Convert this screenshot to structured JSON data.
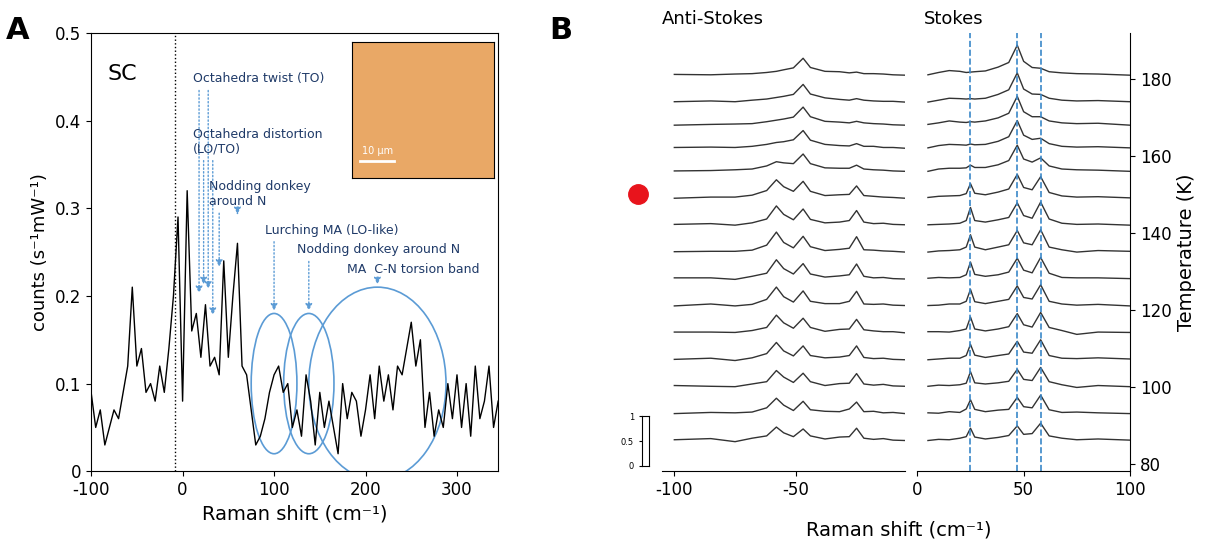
{
  "chart_data": [
    {
      "type": "line",
      "panel_label": "A",
      "sample_label": "SC",
      "xlabel": "Raman shift (cm⁻¹)",
      "ylabel": "counts (s⁻¹mW⁻¹)",
      "xlim": [
        -100,
        345
      ],
      "ylim": [
        0,
        0.5
      ],
      "xticks": [
        -100,
        0,
        100,
        200,
        300
      ],
      "yticks": [
        0,
        0.1,
        0.2,
        0.3,
        0.4,
        0.5
      ],
      "color": "#000000",
      "dotted_line_x": -8,
      "x": [
        -100,
        -95,
        -90,
        -85,
        -80,
        -75,
        -70,
        -65,
        -60,
        -55,
        -50,
        -45,
        -40,
        -35,
        -30,
        -25,
        -20,
        -15,
        -10,
        -5,
        0,
        5,
        10,
        15,
        20,
        25,
        30,
        35,
        40,
        45,
        50,
        55,
        60,
        65,
        70,
        75,
        80,
        85,
        90,
        95,
        100,
        105,
        110,
        115,
        120,
        125,
        130,
        135,
        140,
        145,
        150,
        155,
        160,
        165,
        170,
        175,
        180,
        185,
        190,
        195,
        200,
        205,
        210,
        215,
        220,
        225,
        230,
        235,
        240,
        245,
        250,
        255,
        260,
        265,
        270,
        275,
        280,
        285,
        290,
        295,
        300,
        305,
        310,
        315,
        320,
        325,
        330,
        335,
        340,
        345
      ],
      "values": [
        0.09,
        0.05,
        0.07,
        0.03,
        0.05,
        0.07,
        0.06,
        0.09,
        0.12,
        0.21,
        0.12,
        0.14,
        0.09,
        0.1,
        0.08,
        0.12,
        0.09,
        0.14,
        0.2,
        0.29,
        0.08,
        0.32,
        0.16,
        0.18,
        0.13,
        0.19,
        0.12,
        0.13,
        0.11,
        0.24,
        0.13,
        0.2,
        0.26,
        0.12,
        0.11,
        0.07,
        0.03,
        0.04,
        0.06,
        0.09,
        0.11,
        0.12,
        0.09,
        0.1,
        0.05,
        0.07,
        0.04,
        0.11,
        0.08,
        0.03,
        0.09,
        0.05,
        0.08,
        0.05,
        0.02,
        0.1,
        0.06,
        0.09,
        0.08,
        0.04,
        0.07,
        0.11,
        0.06,
        0.12,
        0.08,
        0.11,
        0.07,
        0.12,
        0.11,
        0.14,
        0.17,
        0.12,
        0.15,
        0.05,
        0.09,
        0.04,
        0.07,
        0.05,
        0.1,
        0.06,
        0.11,
        0.05,
        0.1,
        0.04,
        0.12,
        0.06,
        0.08,
        0.12,
        0.05,
        0.08
      ],
      "annotations": [
        {
          "text": "Octahedra twist (TO)",
          "targets": [
            [
              18,
              0.2
            ],
            [
              28,
              0.205
            ]
          ]
        },
        {
          "text": "Octahedra distortion\n(LO/TO)",
          "targets": [
            [
              23,
              0.21
            ],
            [
              33,
              0.175
            ]
          ]
        },
        {
          "text": "Nodding donkey\naround N",
          "targets": [
            [
              40,
              0.23
            ],
            [
              60,
              0.29
            ]
          ]
        },
        {
          "text": "Lurching MA (LO-like)",
          "ellipse": [
            100,
            0.1,
            50,
            0.16
          ]
        },
        {
          "text": "Nodding donkey around N",
          "ellipse": [
            138,
            0.1,
            55,
            0.16
          ]
        },
        {
          "text": "MA  C-N torsion band",
          "ellipse": [
            213,
            0.1,
            150,
            0.22
          ]
        }
      ],
      "inset": {
        "scale_bar": "10 μm"
      }
    },
    {
      "type": "line",
      "panel_label": "B",
      "xlabel": "Raman shift (cm⁻¹)",
      "ylabel": "Temperature (K)",
      "ylim": [
        78,
        192
      ],
      "yticks": [
        80,
        100,
        120,
        140,
        160,
        180
      ],
      "color": "#333333",
      "marker_temperature": 150,
      "marker_color": "#e8141c",
      "dashed_lines_x": [
        25,
        47,
        58
      ],
      "dashed_color": "#3a87c8",
      "scale_ylim": [
        0,
        1
      ],
      "scale_yticks": [
        0,
        0.5,
        1
      ],
      "panels": [
        {
          "title": "Anti-Stokes",
          "xlim": [
            -105,
            -5
          ],
          "xticks": [
            -100,
            -50
          ],
          "x": [
            -100,
            -85,
            -75,
            -68,
            -62,
            -58,
            -55,
            -51,
            -47,
            -44,
            -38,
            -32,
            -28,
            -25,
            -22,
            -18,
            -14,
            -10,
            -5
          ]
        },
        {
          "title": "Stokes",
          "xlim": [
            0,
            100
          ],
          "xticks": [
            0,
            50,
            100
          ],
          "x": [
            5,
            10,
            15,
            20,
            23,
            25,
            27,
            32,
            38,
            43,
            47,
            50,
            54,
            58,
            62,
            68,
            75,
            85,
            100
          ]
        }
      ],
      "traces": [
        {
          "temperature": 86,
          "anti_stokes": [
            0.2,
            0.5,
            -0.3,
            0.6,
            1.2,
            3.5,
            2.0,
            1.0,
            3.0,
            1.2,
            0.4,
            0.9,
            1.0,
            3.2,
            0.6,
            0.3,
            0.5,
            0.1,
            0.0
          ],
          "stokes": [
            0.0,
            0.3,
            0.2,
            0.6,
            1.0,
            3.2,
            0.9,
            0.4,
            0.8,
            1.3,
            3.8,
            1.6,
            1.8,
            4.5,
            1.2,
            0.6,
            0.2,
            0.4,
            0.1
          ]
        },
        {
          "temperature": 93,
          "anti_stokes": [
            0.0,
            0.3,
            0.2,
            0.4,
            1.5,
            4.0,
            2.2,
            0.8,
            3.2,
            1.0,
            0.6,
            0.5,
            1.2,
            3.0,
            0.5,
            0.6,
            0.2,
            0.3,
            0.0
          ],
          "stokes": [
            0.2,
            0.1,
            0.5,
            0.3,
            1.2,
            3.6,
            1.1,
            0.5,
            0.9,
            1.1,
            4.2,
            1.8,
            1.5,
            4.8,
            1.0,
            0.3,
            0.4,
            0.2,
            0.0
          ]
        },
        {
          "temperature": 100,
          "anti_stokes": [
            0.3,
            0.1,
            0.0,
            0.7,
            1.3,
            4.2,
            2.5,
            1.1,
            3.5,
            1.3,
            0.3,
            0.8,
            0.9,
            3.4,
            0.7,
            0.4,
            0.6,
            0.2,
            0.1
          ],
          "stokes": [
            0.1,
            0.4,
            0.3,
            0.5,
            0.9,
            3.9,
            1.0,
            0.7,
            1.0,
            1.4,
            4.5,
            1.9,
            1.6,
            5.0,
            1.3,
            0.5,
            -0.2,
            0.3,
            0.0
          ]
        },
        {
          "temperature": 107,
          "anti_stokes": [
            0.1,
            0.4,
            -0.2,
            0.5,
            1.6,
            4.5,
            2.3,
            1.0,
            3.6,
            1.1,
            0.5,
            0.7,
            1.1,
            3.6,
            0.6,
            0.3,
            0.4,
            0.1,
            0.0
          ],
          "stokes": [
            0.0,
            0.2,
            0.4,
            0.4,
            1.1,
            4.0,
            1.2,
            0.6,
            1.1,
            1.5,
            4.8,
            2.0,
            1.7,
            5.2,
            1.1,
            0.4,
            0.3,
            0.5,
            0.2
          ]
        },
        {
          "temperature": 114,
          "anti_stokes": [
            0.2,
            0.2,
            0.1,
            0.6,
            1.4,
            4.6,
            2.6,
            1.2,
            3.8,
            1.4,
            0.4,
            0.9,
            1.0,
            3.5,
            0.8,
            0.5,
            0.3,
            0.3,
            0.0
          ],
          "stokes": [
            0.3,
            0.3,
            0.2,
            0.6,
            1.0,
            4.1,
            1.0,
            0.5,
            1.0,
            1.6,
            5.0,
            2.1,
            1.5,
            5.3,
            1.4,
            0.6,
            -0.4,
            0.2,
            0.1
          ]
        },
        {
          "temperature": 121,
          "anti_stokes": [
            0.0,
            0.5,
            0.0,
            0.4,
            1.7,
            4.9,
            2.4,
            1.0,
            3.9,
            1.2,
            0.6,
            0.6,
            1.2,
            3.8,
            0.5,
            0.4,
            0.5,
            0.2,
            0.1
          ],
          "stokes": [
            0.1,
            0.2,
            0.5,
            0.5,
            1.2,
            4.3,
            1.1,
            0.6,
            1.2,
            1.7,
            5.2,
            2.2,
            1.8,
            5.5,
            1.2,
            0.5,
            0.2,
            0.4,
            0.0
          ]
        },
        {
          "temperature": 128,
          "anti_stokes": [
            0.3,
            0.3,
            -0.1,
            0.7,
            1.5,
            5.0,
            2.7,
            1.3,
            4.0,
            1.3,
            0.5,
            0.8,
            1.1,
            3.9,
            0.7,
            0.3,
            0.4,
            0.1,
            0.0
          ],
          "stokes": [
            0.2,
            0.4,
            0.3,
            0.4,
            1.1,
            4.4,
            1.2,
            0.7,
            1.1,
            1.8,
            5.4,
            2.3,
            1.6,
            5.6,
            1.5,
            0.4,
            0.3,
            0.3,
            0.1
          ]
        },
        {
          "temperature": 135,
          "anti_stokes": [
            0.1,
            0.2,
            0.2,
            0.5,
            1.8,
            5.2,
            2.5,
            1.1,
            4.1,
            1.4,
            0.4,
            0.7,
            1.0,
            4.0,
            0.6,
            0.5,
            0.3,
            0.2,
            0.0
          ],
          "stokes": [
            0.0,
            0.3,
            0.4,
            0.6,
            1.3,
            4.5,
            1.3,
            0.6,
            1.3,
            1.9,
            5.6,
            2.4,
            1.9,
            5.8,
            1.3,
            0.6,
            0.0,
            0.4,
            0.2
          ]
        },
        {
          "temperature": 142,
          "anti_stokes": [
            0.2,
            0.4,
            0.0,
            0.6,
            1.6,
            5.0,
            2.8,
            1.4,
            4.2,
            1.5,
            0.6,
            0.8,
            1.2,
            3.8,
            0.8,
            0.4,
            0.5,
            0.2,
            0.1
          ],
          "stokes": [
            0.1,
            0.2,
            0.3,
            0.5,
            1.2,
            4.6,
            1.2,
            0.8,
            1.4,
            2.0,
            5.8,
            2.5,
            1.8,
            6.0,
            1.6,
            0.5,
            0.2,
            0.3,
            0.0
          ]
        },
        {
          "temperature": 149,
          "anti_stokes": [
            0.0,
            0.3,
            0.3,
            0.8,
            2.0,
            4.8,
            3.0,
            1.8,
            4.4,
            1.8,
            0.7,
            0.9,
            1.0,
            3.2,
            0.7,
            0.5,
            0.3,
            0.2,
            0.0
          ],
          "stokes": [
            0.2,
            0.5,
            0.6,
            0.7,
            1.2,
            3.8,
            1.3,
            0.9,
            1.6,
            2.4,
            6.2,
            2.8,
            2.2,
            5.6,
            1.5,
            0.6,
            0.3,
            0.4,
            0.1
          ]
        },
        {
          "temperature": 156,
          "anti_stokes": [
            0.1,
            0.2,
            0.4,
            0.6,
            1.4,
            2.5,
            2.2,
            2.0,
            4.5,
            2.0,
            0.9,
            0.8,
            0.8,
            1.6,
            0.6,
            0.4,
            0.3,
            0.1,
            0.0
          ],
          "stokes": [
            0.0,
            0.6,
            0.8,
            0.8,
            0.9,
            1.6,
            1.0,
            1.0,
            1.7,
            2.8,
            6.8,
            3.2,
            2.4,
            3.5,
            1.4,
            0.6,
            0.4,
            0.3,
            0.0
          ]
        },
        {
          "temperature": 162,
          "anti_stokes": [
            0.2,
            0.3,
            0.2,
            0.5,
            1.0,
            1.5,
            1.7,
            2.2,
            4.6,
            2.1,
            1.0,
            0.7,
            0.6,
            1.2,
            0.5,
            0.5,
            0.2,
            0.2,
            0.0
          ],
          "stokes": [
            0.1,
            0.7,
            1.0,
            0.9,
            0.8,
            1.1,
            0.9,
            1.0,
            1.8,
            3.0,
            7.2,
            3.4,
            2.3,
            2.6,
            1.2,
            0.5,
            0.3,
            0.4,
            0.1
          ]
        },
        {
          "temperature": 168,
          "anti_stokes": [
            0.0,
            0.2,
            0.3,
            0.4,
            0.9,
            1.3,
            1.6,
            2.1,
            4.7,
            2.2,
            1.0,
            0.8,
            0.6,
            1.0,
            0.6,
            0.4,
            0.3,
            0.1,
            0.0
          ],
          "stokes": [
            0.2,
            0.6,
            1.1,
            0.8,
            0.7,
            0.9,
            0.8,
            1.1,
            1.9,
            3.1,
            7.5,
            3.5,
            2.2,
            2.2,
            1.1,
            0.6,
            0.4,
            0.5,
            0.0
          ]
        },
        {
          "temperature": 174,
          "anti_stokes": [
            0.1,
            0.3,
            0.1,
            0.5,
            0.8,
            1.2,
            1.5,
            2.0,
            4.6,
            2.1,
            1.1,
            0.7,
            0.5,
            0.9,
            0.5,
            0.3,
            0.2,
            0.2,
            0.0
          ],
          "stokes": [
            0.0,
            0.5,
            1.0,
            0.9,
            0.8,
            0.9,
            0.8,
            1.0,
            2.0,
            3.2,
            7.6,
            3.4,
            2.1,
            2.0,
            1.0,
            0.5,
            0.3,
            0.4,
            0.1
          ]
        },
        {
          "temperature": 181,
          "anti_stokes": [
            0.2,
            0.1,
            0.3,
            0.4,
            0.7,
            1.0,
            1.4,
            1.9,
            4.4,
            2.0,
            1.0,
            0.9,
            0.6,
            0.8,
            0.4,
            0.4,
            0.3,
            0.1,
            0.0
          ],
          "stokes": [
            0.1,
            0.7,
            1.2,
            1.0,
            0.7,
            0.8,
            0.9,
            1.1,
            2.1,
            3.3,
            7.8,
            3.6,
            2.0,
            1.8,
            0.9,
            0.6,
            0.4,
            0.3,
            0.0
          ]
        }
      ]
    }
  ]
}
